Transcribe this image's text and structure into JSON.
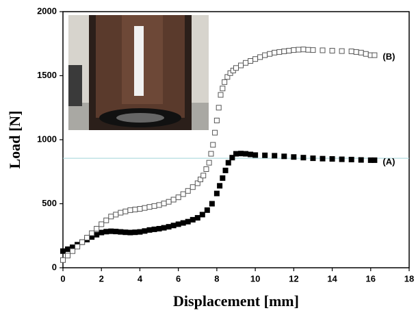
{
  "chart_data": {
    "type": "scatter",
    "x_label": "Displacement [mm]",
    "y_label": "Load [N]",
    "xlim": [
      0,
      18
    ],
    "xticks": [
      0,
      2,
      4,
      6,
      8,
      10,
      12,
      14,
      16,
      18
    ],
    "ylim": [
      0,
      2000
    ],
    "yticks": [
      0,
      500,
      1000,
      1500,
      2000
    ],
    "hline": 855,
    "hline_color": "#9fd3d6",
    "series": [
      {
        "name": "(A)",
        "color": "#000000",
        "filled": true,
        "x": [
          0,
          0.25,
          0.5,
          0.75,
          1,
          1.25,
          1.5,
          1.75,
          2,
          2.25,
          2.5,
          2.75,
          3,
          3.25,
          3.5,
          3.75,
          4,
          4.25,
          4.5,
          4.75,
          5,
          5.25,
          5.5,
          5.75,
          6,
          6.25,
          6.5,
          6.75,
          7,
          7.25,
          7.5,
          7.75,
          8,
          8.15,
          8.3,
          8.45,
          8.6,
          8.8,
          9,
          9.25,
          9.5,
          9.75,
          10,
          10.5,
          11,
          11.5,
          12,
          12.5,
          13,
          13.5,
          14,
          14.5,
          15,
          15.5,
          16,
          16.2
        ],
        "values": [
          130,
          145,
          160,
          180,
          200,
          220,
          240,
          258,
          275,
          282,
          285,
          283,
          280,
          277,
          275,
          277,
          280,
          287,
          295,
          300,
          305,
          312,
          320,
          330,
          340,
          350,
          360,
          375,
          390,
          415,
          450,
          500,
          580,
          640,
          700,
          760,
          820,
          860,
          890,
          892,
          890,
          885,
          880,
          878,
          875,
          870,
          865,
          860,
          855,
          852,
          850,
          847,
          845,
          842,
          840,
          840
        ]
      },
      {
        "name": "(B)",
        "color": "#555555",
        "filled": false,
        "x": [
          0,
          0.25,
          0.5,
          0.75,
          1,
          1.25,
          1.5,
          1.75,
          2,
          2.25,
          2.5,
          2.75,
          3,
          3.25,
          3.5,
          3.75,
          4,
          4.25,
          4.5,
          4.75,
          5,
          5.25,
          5.5,
          5.75,
          6,
          6.25,
          6.5,
          6.75,
          7,
          7.15,
          7.3,
          7.45,
          7.6,
          7.7,
          7.8,
          7.9,
          8,
          8.1,
          8.2,
          8.3,
          8.4,
          8.55,
          8.7,
          8.85,
          9,
          9.25,
          9.5,
          9.75,
          10,
          10.25,
          10.5,
          10.75,
          11,
          11.25,
          11.5,
          11.75,
          12,
          12.25,
          12.5,
          12.75,
          13,
          13.5,
          14,
          14.5,
          15,
          15.25,
          15.5,
          15.75,
          16,
          16.2
        ],
        "values": [
          60,
          95,
          130,
          165,
          200,
          235,
          270,
          305,
          340,
          370,
          400,
          415,
          430,
          440,
          450,
          455,
          460,
          467,
          475,
          482,
          490,
          502,
          515,
          532,
          550,
          575,
          600,
          630,
          660,
          690,
          720,
          770,
          820,
          890,
          960,
          1055,
          1150,
          1250,
          1350,
          1400,
          1450,
          1490,
          1520,
          1540,
          1560,
          1580,
          1600,
          1615,
          1630,
          1645,
          1660,
          1670,
          1680,
          1685,
          1690,
          1695,
          1700,
          1703,
          1705,
          1702,
          1700,
          1698,
          1695,
          1692,
          1690,
          1685,
          1680,
          1670,
          1660,
          1660
        ]
      }
    ]
  }
}
